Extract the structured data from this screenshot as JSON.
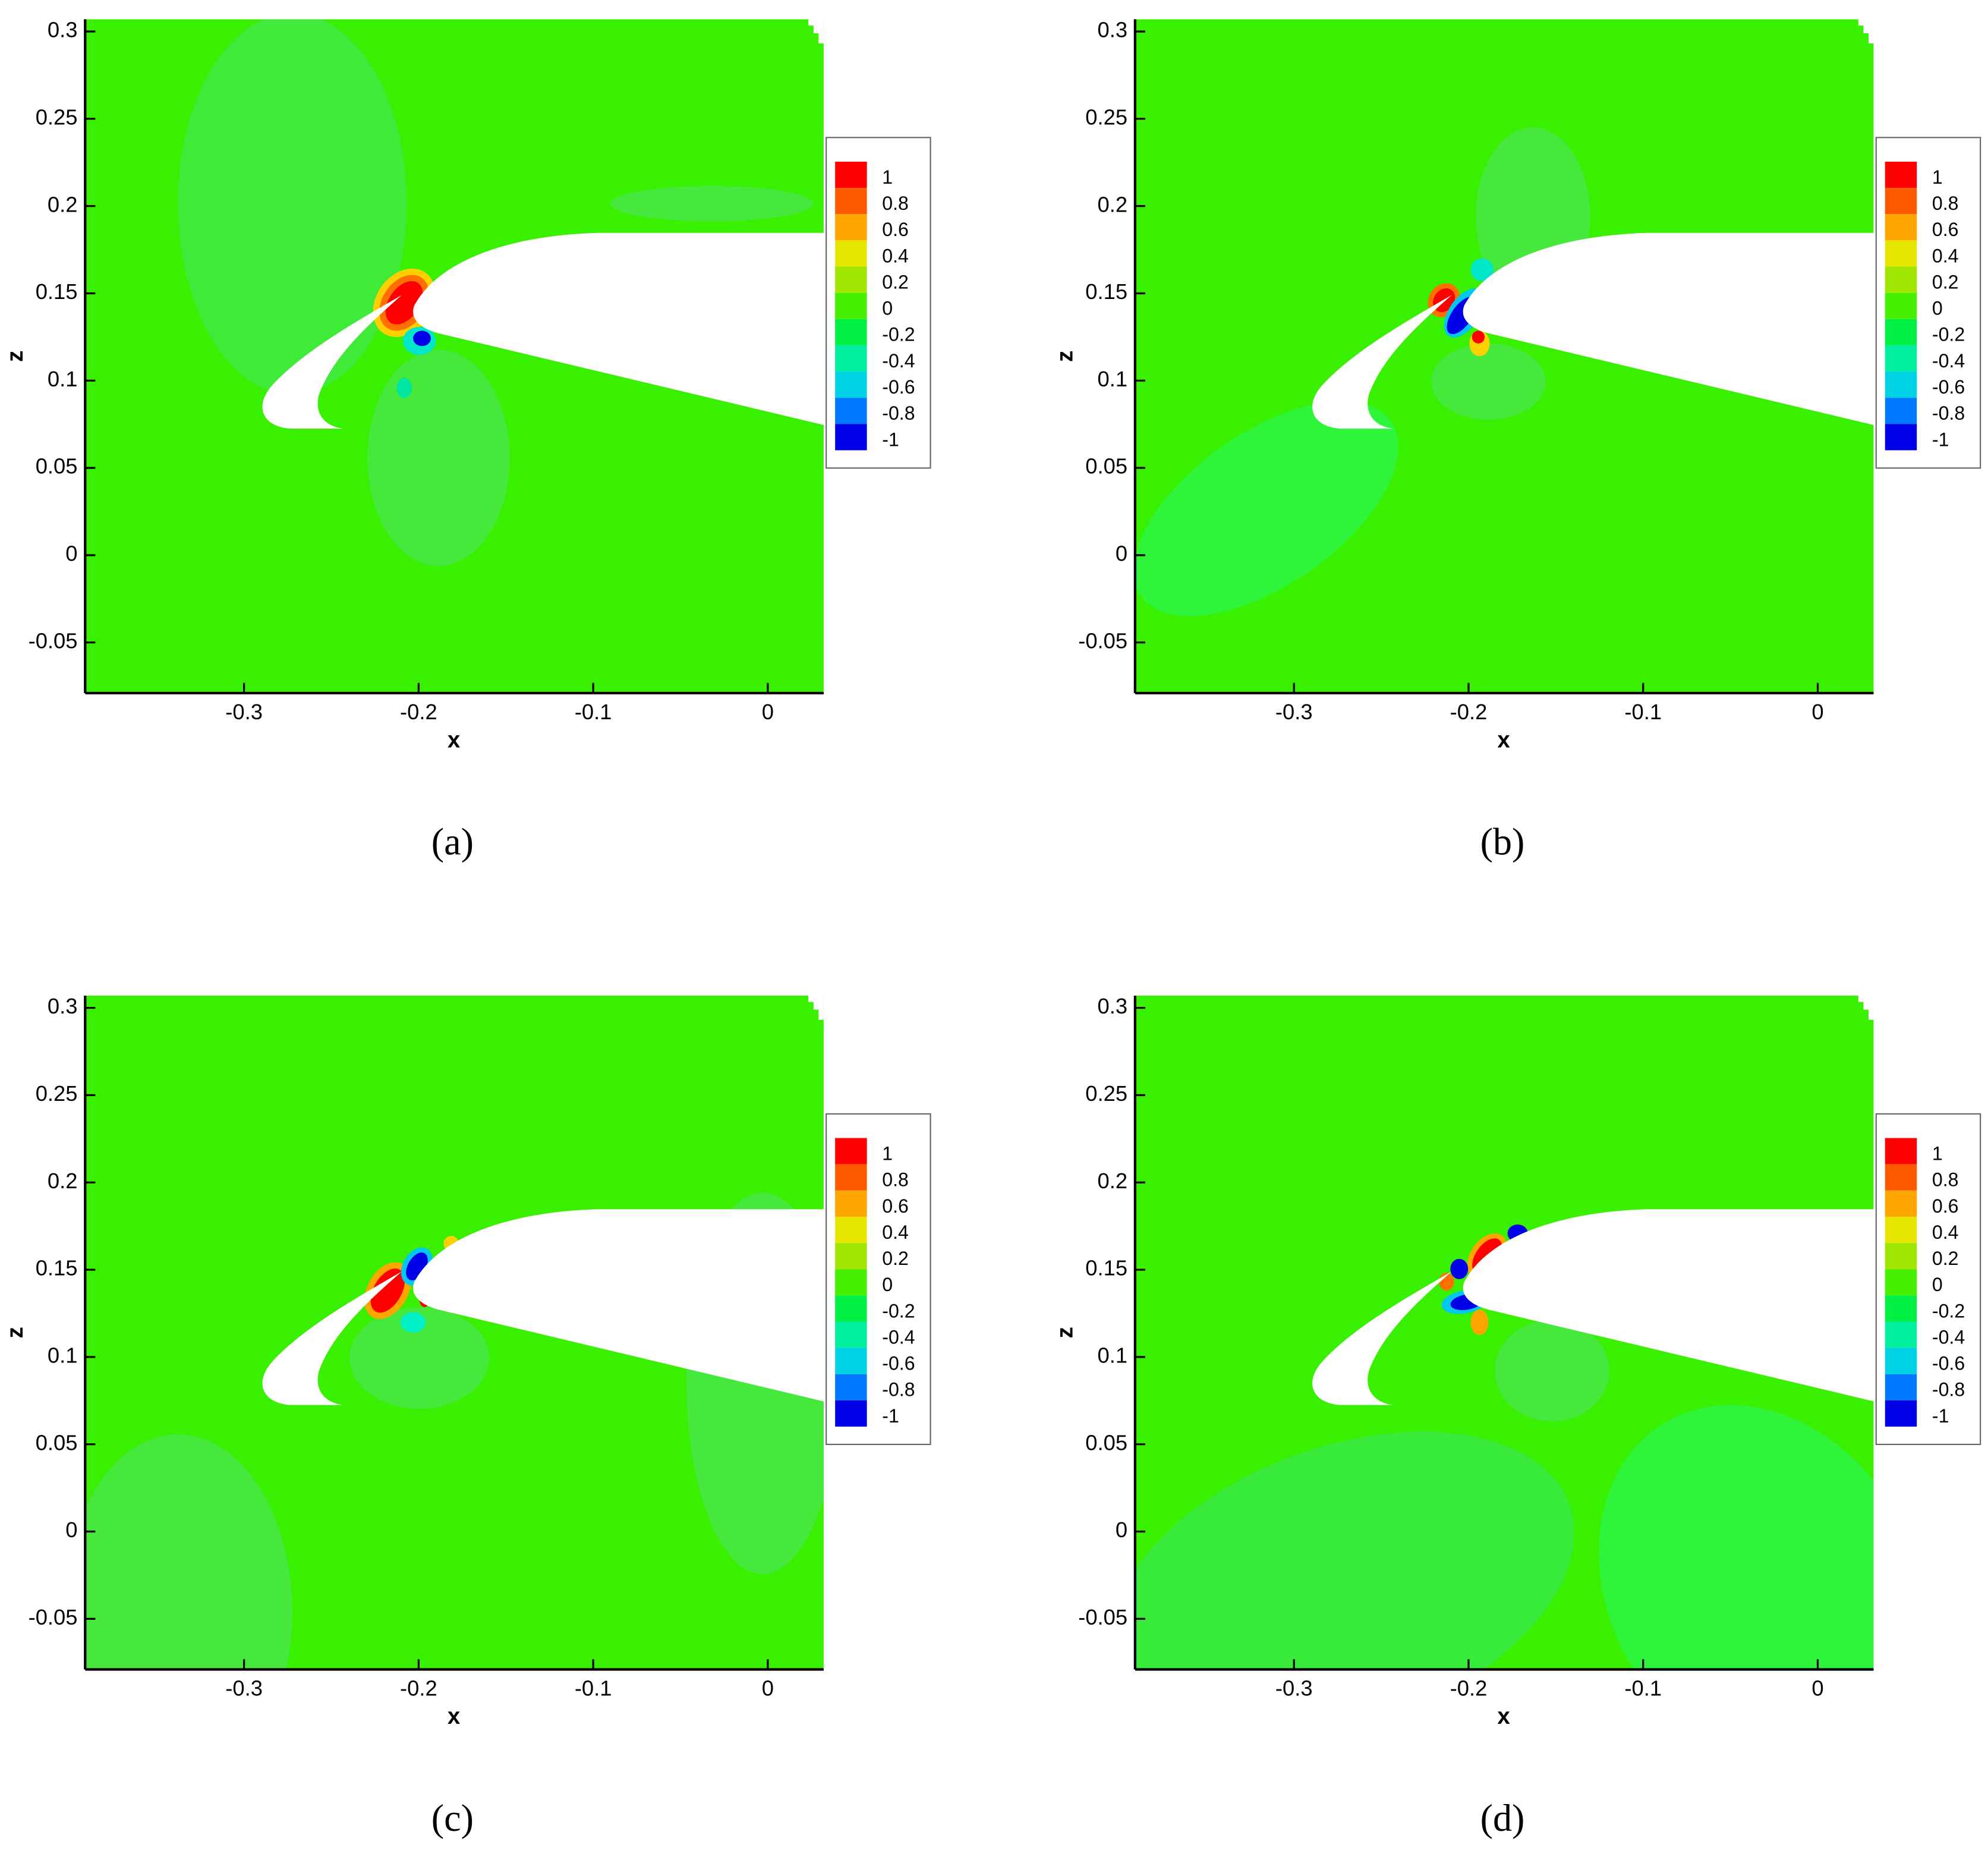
{
  "chart_data": [
    {
      "type": "contour",
      "caption": "(a)",
      "xlabel": "x",
      "ylabel": "z",
      "xlim": [
        -0.391,
        0.032
      ],
      "ylim": [
        -0.079,
        0.307
      ],
      "xticks": [
        -0.3,
        -0.2,
        -0.1,
        0
      ],
      "yticks": [
        -0.05,
        0,
        0.05,
        0.1,
        0.15,
        0.2,
        0.25,
        0.3
      ],
      "legend": {
        "levels": [
          1,
          0.8,
          0.6,
          0.4,
          0.2,
          0,
          -0.2,
          -0.4,
          -0.6,
          -0.8,
          -1
        ],
        "colors": [
          "#ff0000",
          "#ff5a00",
          "#ffa500",
          "#e6e600",
          "#a0e600",
          "#46f000",
          "#00f046",
          "#00f0a0",
          "#00d2e6",
          "#0078ff",
          "#0000e6"
        ]
      }
    },
    {
      "type": "contour",
      "caption": "(b)",
      "xlabel": "x",
      "ylabel": "z",
      "xlim": [
        -0.391,
        0.032
      ],
      "ylim": [
        -0.079,
        0.307
      ],
      "xticks": [
        -0.3,
        -0.2,
        -0.1,
        0
      ],
      "yticks": [
        -0.05,
        0,
        0.05,
        0.1,
        0.15,
        0.2,
        0.25,
        0.3
      ],
      "legend": {
        "levels": [
          1,
          0.8,
          0.6,
          0.4,
          0.2,
          0,
          -0.2,
          -0.4,
          -0.6,
          -0.8,
          -1
        ],
        "colors": [
          "#ff0000",
          "#ff5a00",
          "#ffa500",
          "#e6e600",
          "#a0e600",
          "#46f000",
          "#00f046",
          "#00f0a0",
          "#00d2e6",
          "#0078ff",
          "#0000e6"
        ]
      }
    },
    {
      "type": "contour",
      "caption": "(c)",
      "xlabel": "x",
      "ylabel": "z",
      "xlim": [
        -0.391,
        0.032
      ],
      "ylim": [
        -0.079,
        0.307
      ],
      "xticks": [
        -0.3,
        -0.2,
        -0.1,
        0
      ],
      "yticks": [
        -0.05,
        0,
        0.05,
        0.1,
        0.15,
        0.2,
        0.25,
        0.3
      ],
      "legend": {
        "levels": [
          1,
          0.8,
          0.6,
          0.4,
          0.2,
          0,
          -0.2,
          -0.4,
          -0.6,
          -0.8,
          -1
        ],
        "colors": [
          "#ff0000",
          "#ff5a00",
          "#ffa500",
          "#e6e600",
          "#a0e600",
          "#46f000",
          "#00f046",
          "#00f0a0",
          "#00d2e6",
          "#0078ff",
          "#0000e6"
        ]
      }
    },
    {
      "type": "contour",
      "caption": "(d)",
      "xlabel": "x",
      "ylabel": "z",
      "xlim": [
        -0.391,
        0.032
      ],
      "ylim": [
        -0.079,
        0.307
      ],
      "xticks": [
        -0.3,
        -0.2,
        -0.1,
        0
      ],
      "yticks": [
        -0.05,
        0,
        0.05,
        0.1,
        0.15,
        0.2,
        0.25,
        0.3
      ],
      "legend": {
        "levels": [
          1,
          0.8,
          0.6,
          0.4,
          0.2,
          0,
          -0.2,
          -0.4,
          -0.6,
          -0.8,
          -1
        ],
        "colors": [
          "#ff0000",
          "#ff5a00",
          "#ffa500",
          "#e6e600",
          "#a0e600",
          "#46f000",
          "#00f046",
          "#00f0a0",
          "#00d2e6",
          "#0078ff",
          "#0000e6"
        ]
      }
    }
  ]
}
